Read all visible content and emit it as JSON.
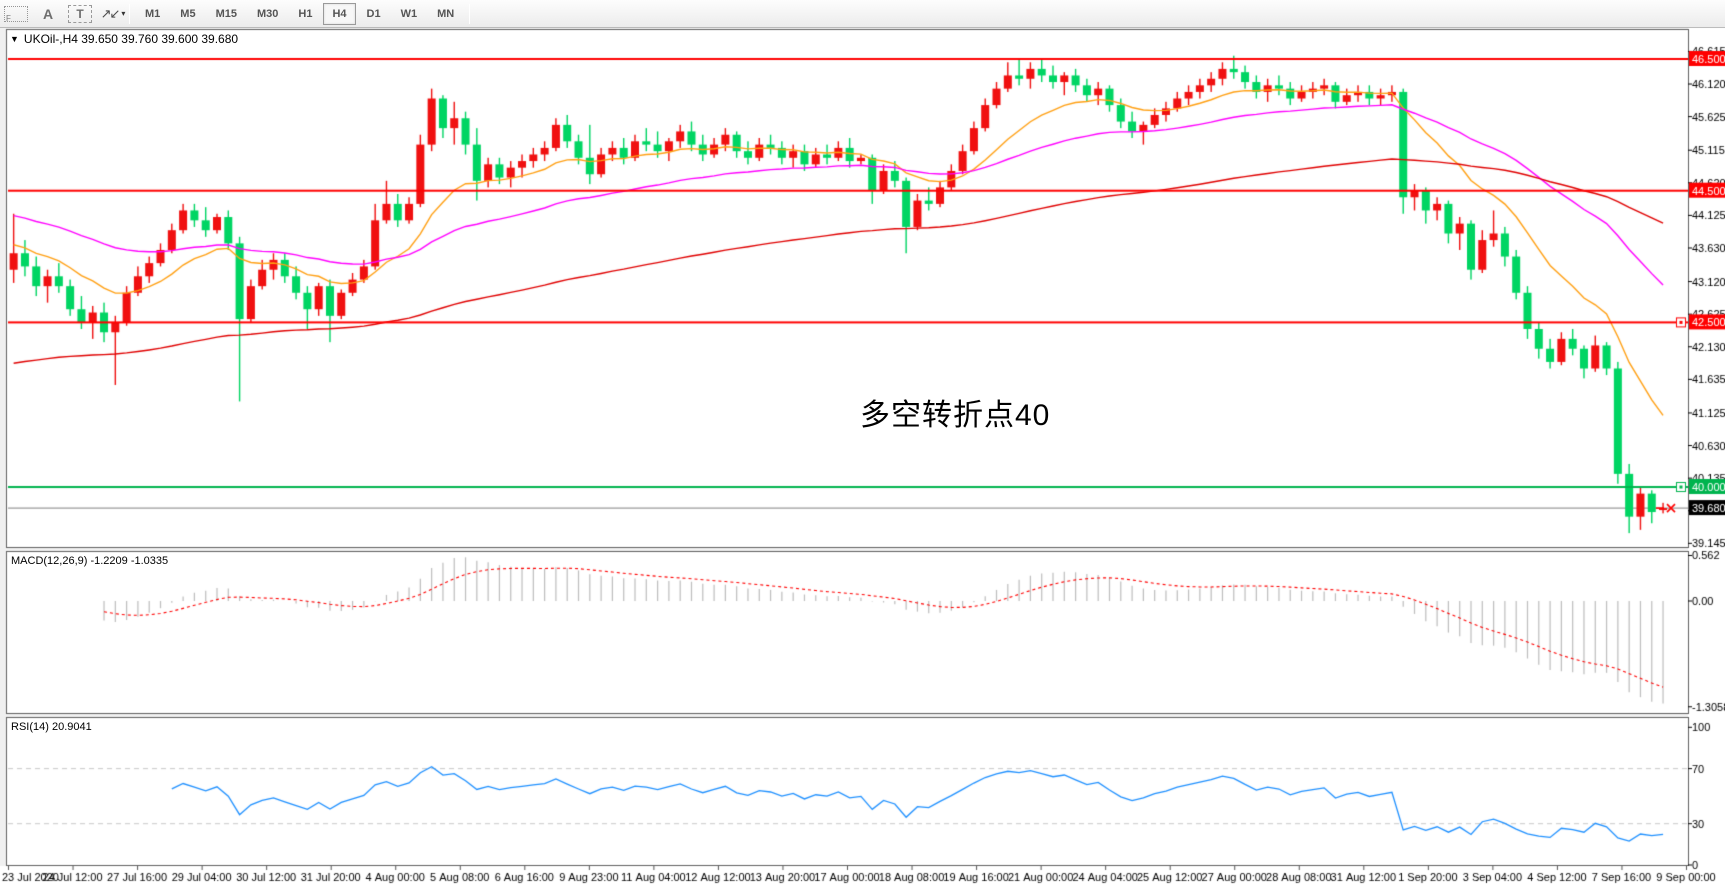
{
  "toolbar": {
    "tool_f_label": "F",
    "tool_a_label": "A",
    "tool_t_label": "T",
    "arrows_icon_glyph": "↗↙",
    "caret_glyph": "▾",
    "timeframes": [
      "M1",
      "M5",
      "M15",
      "M30",
      "H1",
      "H4",
      "D1",
      "W1",
      "MN"
    ],
    "active_timeframe": "H4"
  },
  "chart": {
    "dropdown_glyph": "▼",
    "title": "UKOil-,H4  39.650 39.760 39.600 39.680",
    "symbol": "UKOil-",
    "period": "H4",
    "ohlc": {
      "open": "39.650",
      "high": "39.760",
      "low": "39.600",
      "close": "39.680"
    },
    "annotation": {
      "text": "多空转折点40",
      "color": "#ff0000"
    },
    "colors": {
      "bull": "#f01010",
      "bear": "#00d563",
      "ma_fast": "#ffa013",
      "ma_mid": "#ff00ff",
      "ma_slow": "#e00000",
      "hline_red": "#ff0000",
      "hline_green": "#00b44e",
      "price_line": "#808080",
      "price_box": "#000000",
      "pane_border": "#5f5f5f",
      "axis_text": "#000000",
      "marker": "#ff0000"
    },
    "price_axis": {
      "ticks": [
        "46.615",
        "46.120",
        "45.625",
        "45.115",
        "44.620",
        "44.125",
        "43.630",
        "43.120",
        "42.625",
        "42.130",
        "41.635",
        "41.125",
        "40.630",
        "40.135",
        "39.640",
        "39.145"
      ]
    },
    "hlines": [
      {
        "label": "46.500",
        "value": 46.5,
        "color": "#ff0000",
        "handle": false
      },
      {
        "label": "44.500",
        "value": 44.5,
        "color": "#ff0000",
        "handle": false
      },
      {
        "label": "42.500",
        "value": 42.5,
        "color": "#ff0000",
        "handle": true
      },
      {
        "label": "40.000",
        "value": 40.0,
        "color": "#00b44e",
        "handle": true
      }
    ],
    "current_price": {
      "label": "39.680",
      "value": 39.68
    },
    "time_axis": {
      "labels": [
        "23 Jul 2020",
        "24 Jul 12:00",
        "27 Jul 16:00",
        "29 Jul 04:00",
        "30 Jul 12:00",
        "31 Jul 20:00",
        "4 Aug 00:00",
        "5 Aug 08:00",
        "6 Aug 16:00",
        "9 Aug 23:00",
        "11 Aug 04:00",
        "12 Aug 12:00",
        "13 Aug 20:00",
        "17 Aug 00:00",
        "18 Aug 08:00",
        "19 Aug 16:00",
        "21 Aug 00:00",
        "24 Aug 04:00",
        "25 Aug 12:00",
        "27 Aug 00:00",
        "28 Aug 08:00",
        "31 Aug 12:00",
        "1 Sep 20:00",
        "3 Sep 04:00",
        "4 Sep 12:00",
        "7 Sep 16:00",
        "9 Sep 00:00"
      ]
    },
    "moving_averages": [
      {
        "name": "ma-fast",
        "period": 13,
        "seed": 43.7,
        "color": "#ffa013"
      },
      {
        "name": "ma-mid",
        "period": 40,
        "seed": 44.15,
        "color": "#ff00ff"
      },
      {
        "name": "ma-slow",
        "period": 110,
        "seed": 41.85,
        "color": "#e00000"
      }
    ],
    "candles": [
      [
        43.3,
        44.15,
        43.1,
        43.55
      ],
      [
        43.55,
        43.75,
        43.2,
        43.35
      ],
      [
        43.35,
        43.5,
        42.9,
        43.05
      ],
      [
        43.05,
        43.3,
        42.8,
        43.2
      ],
      [
        43.2,
        43.4,
        42.95,
        43.05
      ],
      [
        43.05,
        43.15,
        42.6,
        42.7
      ],
      [
        42.7,
        42.9,
        42.4,
        42.5
      ],
      [
        42.5,
        42.75,
        42.25,
        42.65
      ],
      [
        42.65,
        42.8,
        42.2,
        42.35
      ],
      [
        42.35,
        42.6,
        41.55,
        42.5
      ],
      [
        42.5,
        43.05,
        42.45,
        42.95
      ],
      [
        42.95,
        43.35,
        42.9,
        43.2
      ],
      [
        43.2,
        43.5,
        43.1,
        43.4
      ],
      [
        43.4,
        43.7,
        43.35,
        43.6
      ],
      [
        43.6,
        44.0,
        43.55,
        43.9
      ],
      [
        43.9,
        44.3,
        43.85,
        44.2
      ],
      [
        44.2,
        44.3,
        43.95,
        44.05
      ],
      [
        44.05,
        44.25,
        43.8,
        43.9
      ],
      [
        43.9,
        44.15,
        43.85,
        44.1
      ],
      [
        44.1,
        44.2,
        43.6,
        43.7
      ],
      [
        43.7,
        43.8,
        41.3,
        42.55
      ],
      [
        42.55,
        43.15,
        42.5,
        43.05
      ],
      [
        43.05,
        43.45,
        43.0,
        43.3
      ],
      [
        43.3,
        43.55,
        43.15,
        43.45
      ],
      [
        43.45,
        43.55,
        43.1,
        43.2
      ],
      [
        43.2,
        43.35,
        42.85,
        42.95
      ],
      [
        42.95,
        43.05,
        42.4,
        42.7
      ],
      [
        42.7,
        43.1,
        42.6,
        43.05
      ],
      [
        43.05,
        43.15,
        42.2,
        42.6
      ],
      [
        42.6,
        43.0,
        42.55,
        42.95
      ],
      [
        42.95,
        43.25,
        42.9,
        43.15
      ],
      [
        43.15,
        43.45,
        43.1,
        43.35
      ],
      [
        43.35,
        44.3,
        43.3,
        44.05
      ],
      [
        44.05,
        44.65,
        44.0,
        44.3
      ],
      [
        44.3,
        44.45,
        43.95,
        44.05
      ],
      [
        44.05,
        44.4,
        44.0,
        44.3
      ],
      [
        44.3,
        45.35,
        44.25,
        45.2
      ],
      [
        45.2,
        46.05,
        45.1,
        45.9
      ],
      [
        45.9,
        45.95,
        45.3,
        45.45
      ],
      [
        45.45,
        45.85,
        45.2,
        45.6
      ],
      [
        45.6,
        45.7,
        45.05,
        45.2
      ],
      [
        45.2,
        45.45,
        44.35,
        44.65
      ],
      [
        44.65,
        45.0,
        44.55,
        44.9
      ],
      [
        44.9,
        45.0,
        44.6,
        44.7
      ],
      [
        44.7,
        44.95,
        44.55,
        44.85
      ],
      [
        44.85,
        45.05,
        44.7,
        44.95
      ],
      [
        44.95,
        45.15,
        44.85,
        45.05
      ],
      [
        45.05,
        45.25,
        44.95,
        45.15
      ],
      [
        45.15,
        45.6,
        45.1,
        45.5
      ],
      [
        45.5,
        45.65,
        45.15,
        45.25
      ],
      [
        45.25,
        45.35,
        44.9,
        45.0
      ],
      [
        45.0,
        45.5,
        44.6,
        44.75
      ],
      [
        44.75,
        45.15,
        44.7,
        45.05
      ],
      [
        45.05,
        45.25,
        44.95,
        45.15
      ],
      [
        45.15,
        45.3,
        44.9,
        45.0
      ],
      [
        45.0,
        45.35,
        44.95,
        45.25
      ],
      [
        45.25,
        45.45,
        45.1,
        45.2
      ],
      [
        45.2,
        45.4,
        45.0,
        45.1
      ],
      [
        45.1,
        45.3,
        44.95,
        45.25
      ],
      [
        45.25,
        45.5,
        45.15,
        45.4
      ],
      [
        45.4,
        45.55,
        45.1,
        45.2
      ],
      [
        45.2,
        45.35,
        44.95,
        45.05
      ],
      [
        45.05,
        45.3,
        45.0,
        45.2
      ],
      [
        45.2,
        45.45,
        45.1,
        45.35
      ],
      [
        45.35,
        45.4,
        45.0,
        45.1
      ],
      [
        45.1,
        45.25,
        44.9,
        45.0
      ],
      [
        45.0,
        45.3,
        44.95,
        45.2
      ],
      [
        45.2,
        45.35,
        45.05,
        45.15
      ],
      [
        45.15,
        45.25,
        44.9,
        45.0
      ],
      [
        45.0,
        45.2,
        44.85,
        45.1
      ],
      [
        45.1,
        45.2,
        44.8,
        44.9
      ],
      [
        44.9,
        45.15,
        44.85,
        45.05
      ],
      [
        45.05,
        45.2,
        44.9,
        45.0
      ],
      [
        45.0,
        45.25,
        44.95,
        45.15
      ],
      [
        45.15,
        45.3,
        44.85,
        44.95
      ],
      [
        44.95,
        45.05,
        44.9,
        45.0
      ],
      [
        45.0,
        45.05,
        44.3,
        44.5
      ],
      [
        44.5,
        44.9,
        44.45,
        44.8
      ],
      [
        44.8,
        44.95,
        44.55,
        44.65
      ],
      [
        44.65,
        44.7,
        43.55,
        43.95
      ],
      [
        43.95,
        44.45,
        43.9,
        44.35
      ],
      [
        44.35,
        44.55,
        44.2,
        44.3
      ],
      [
        44.3,
        44.65,
        44.25,
        44.55
      ],
      [
        44.55,
        44.9,
        44.5,
        44.8
      ],
      [
        44.8,
        45.2,
        44.75,
        45.1
      ],
      [
        45.1,
        45.55,
        45.05,
        45.45
      ],
      [
        45.45,
        45.9,
        45.4,
        45.8
      ],
      [
        45.8,
        46.15,
        45.75,
        46.05
      ],
      [
        46.05,
        46.45,
        46.0,
        46.25
      ],
      [
        46.25,
        46.5,
        46.1,
        46.2
      ],
      [
        46.2,
        46.45,
        46.05,
        46.35
      ],
      [
        46.35,
        46.5,
        46.15,
        46.25
      ],
      [
        46.25,
        46.4,
        46.05,
        46.15
      ],
      [
        46.15,
        46.3,
        45.95,
        46.25
      ],
      [
        46.25,
        46.35,
        46.0,
        46.1
      ],
      [
        46.1,
        46.2,
        45.85,
        45.95
      ],
      [
        45.95,
        46.15,
        45.8,
        46.05
      ],
      [
        46.05,
        46.1,
        45.7,
        45.8
      ],
      [
        45.8,
        45.9,
        45.45,
        45.55
      ],
      [
        45.55,
        45.7,
        45.3,
        45.4
      ],
      [
        45.4,
        45.55,
        45.2,
        45.5
      ],
      [
        45.5,
        45.75,
        45.45,
        45.65
      ],
      [
        45.65,
        45.85,
        45.55,
        45.75
      ],
      [
        45.75,
        46.0,
        45.7,
        45.9
      ],
      [
        45.9,
        46.1,
        45.8,
        46.0
      ],
      [
        46.0,
        46.2,
        45.9,
        46.1
      ],
      [
        46.1,
        46.3,
        46.0,
        46.2
      ],
      [
        46.2,
        46.45,
        46.1,
        46.35
      ],
      [
        46.35,
        46.55,
        46.2,
        46.3
      ],
      [
        46.3,
        46.4,
        46.05,
        46.15
      ],
      [
        46.15,
        46.25,
        45.9,
        46.0
      ],
      [
        46.0,
        46.2,
        45.85,
        46.1
      ],
      [
        46.1,
        46.25,
        45.95,
        46.05
      ],
      [
        46.05,
        46.15,
        45.8,
        45.9
      ],
      [
        45.9,
        46.1,
        45.85,
        46.0
      ],
      [
        46.0,
        46.15,
        45.9,
        46.05
      ],
      [
        46.05,
        46.2,
        45.95,
        46.1
      ],
      [
        46.1,
        46.15,
        45.75,
        45.85
      ],
      [
        45.85,
        46.05,
        45.8,
        45.95
      ],
      [
        45.95,
        46.1,
        45.85,
        46.0
      ],
      [
        46.0,
        46.1,
        45.8,
        45.9
      ],
      [
        45.9,
        46.05,
        45.8,
        45.95
      ],
      [
        45.95,
        46.1,
        45.85,
        46.0
      ],
      [
        46.0,
        46.05,
        44.15,
        44.4
      ],
      [
        44.4,
        44.6,
        44.2,
        44.5
      ],
      [
        44.5,
        44.55,
        44.0,
        44.2
      ],
      [
        44.2,
        44.4,
        44.05,
        44.3
      ],
      [
        44.3,
        44.35,
        43.7,
        43.85
      ],
      [
        43.85,
        44.1,
        43.6,
        44.0
      ],
      [
        44.0,
        44.05,
        43.15,
        43.3
      ],
      [
        43.3,
        43.9,
        43.25,
        43.75
      ],
      [
        43.75,
        44.2,
        43.65,
        43.85
      ],
      [
        43.85,
        43.95,
        43.35,
        43.5
      ],
      [
        43.5,
        43.6,
        42.85,
        42.95
      ],
      [
        42.95,
        43.05,
        42.25,
        42.4
      ],
      [
        42.4,
        42.5,
        41.95,
        42.1
      ],
      [
        42.1,
        42.25,
        41.8,
        41.9
      ],
      [
        41.9,
        42.35,
        41.85,
        42.25
      ],
      [
        42.25,
        42.4,
        42.0,
        42.1
      ],
      [
        42.1,
        42.15,
        41.65,
        41.8
      ],
      [
        41.8,
        42.3,
        41.75,
        42.15
      ],
      [
        42.15,
        42.2,
        41.7,
        41.8
      ],
      [
        41.8,
        41.9,
        40.05,
        40.2
      ],
      [
        40.2,
        40.35,
        39.3,
        39.55
      ],
      [
        39.55,
        40.0,
        39.35,
        39.9
      ],
      [
        39.9,
        39.95,
        39.45,
        39.62
      ],
      [
        39.65,
        39.76,
        39.6,
        39.68
      ]
    ]
  },
  "macd_panel": {
    "label": "MACD(12,26,9) -1.2209 -1.0335",
    "params": "12,26,9",
    "main_value": "-1.2209",
    "signal_value": "-1.0335",
    "axis_ticks": [
      {
        "label": "0.562",
        "value": 0.562
      },
      {
        "label": "0.00",
        "value": 0.0
      },
      {
        "label": "-1.3058",
        "value": -1.3058
      }
    ],
    "histogram_color": "#bdbdbd",
    "signal_color": "#ff0000"
  },
  "rsi_panel": {
    "label": "RSI(14) 20.9041",
    "period": "14",
    "value": "20.9041",
    "axis_ticks": [
      {
        "label": "100",
        "value": 100
      },
      {
        "label": "70",
        "value": 70
      },
      {
        "label": "30",
        "value": 30
      },
      {
        "label": "0",
        "value": 0
      }
    ],
    "levels": [
      70,
      30
    ],
    "line_color": "#1e90ff",
    "level_color": "#c8c8c8"
  }
}
